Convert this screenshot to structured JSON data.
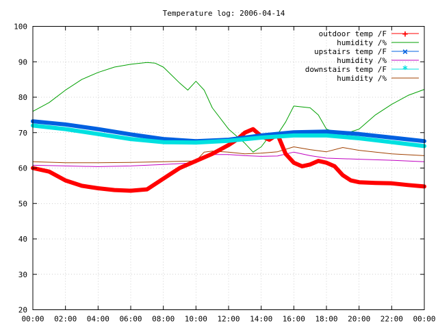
{
  "chart_data": {
    "type": "line",
    "title": "Temperature log: 2006-04-14",
    "xlabel": "",
    "ylabel": "",
    "xlim": [
      0,
      24
    ],
    "ylim": [
      20,
      100
    ],
    "grid": true,
    "legend_position": "top-right",
    "x_ticks": [
      "00:00",
      "02:00",
      "04:00",
      "06:00",
      "08:00",
      "10:00",
      "12:00",
      "14:00",
      "16:00",
      "18:00",
      "20:00",
      "22:00",
      "00:00"
    ],
    "y_ticks": [
      20,
      30,
      40,
      50,
      60,
      70,
      80,
      90,
      100
    ],
    "series": [
      {
        "name": "outdoor temp /F",
        "color": "#ff0000",
        "marker": "+",
        "width": 6,
        "x": [
          0,
          1,
          2,
          3,
          4,
          5,
          6,
          7,
          8,
          9,
          10,
          11,
          12,
          12.5,
          13,
          13.5,
          14,
          14.5,
          15,
          15.5,
          16,
          16.5,
          17,
          17.5,
          18,
          18.5,
          19,
          19.5,
          20,
          21,
          22,
          23,
          24
        ],
        "y": [
          60,
          59,
          56.5,
          55,
          54.3,
          53.8,
          53.6,
          54,
          57,
          60,
          62,
          64,
          66.5,
          68,
          70,
          71,
          69,
          68,
          69.5,
          64,
          61.5,
          60.5,
          61,
          62,
          61.5,
          60.5,
          58,
          56.5,
          56,
          55.8,
          55.7,
          55.2,
          54.8
        ]
      },
      {
        "name": "humidity /%",
        "color": "#00a000",
        "marker": "",
        "width": 1,
        "x": [
          0,
          1,
          2,
          3,
          4,
          5,
          6,
          7,
          7.5,
          8,
          9,
          9.5,
          10,
          10.5,
          11,
          12,
          13,
          13.5,
          14,
          14.5,
          15,
          15.5,
          16,
          17,
          17.5,
          18,
          19,
          20,
          21,
          22,
          23,
          24
        ],
        "y": [
          76,
          78.5,
          82,
          85,
          87,
          88.5,
          89.3,
          89.8,
          89.6,
          88.5,
          84,
          82,
          84.5,
          82,
          77,
          71,
          67,
          64.5,
          66,
          69,
          69.5,
          73,
          77.5,
          77,
          75,
          71,
          69.5,
          71,
          75,
          78,
          80.5,
          82.2
        ]
      },
      {
        "name": "upstairs temp /F",
        "color": "#0060e0",
        "marker": "×",
        "width": 6,
        "x": [
          0,
          2,
          4,
          6,
          8,
          10,
          12,
          14,
          16,
          18,
          20,
          22,
          24
        ],
        "y": [
          73.2,
          72.3,
          71,
          69.5,
          68.2,
          67.6,
          68,
          69.2,
          70.1,
          70.3,
          69.6,
          68.6,
          67.6
        ]
      },
      {
        "name": "humidity /%",
        "color": "#c000c0",
        "marker": "",
        "width": 1,
        "x": [
          0,
          2,
          4,
          6,
          8,
          10,
          10.5,
          11,
          12,
          13,
          14,
          15,
          16,
          17,
          18,
          20,
          22,
          24
        ],
        "y": [
          60.8,
          60.6,
          60.4,
          60.6,
          61,
          61.5,
          63,
          63.8,
          63.8,
          63.5,
          63.3,
          63.4,
          64.5,
          63.5,
          62.8,
          62.5,
          62.2,
          61.8
        ]
      },
      {
        "name": "downstairs temp /F",
        "color": "#00e0e0",
        "marker": "*",
        "width": 6,
        "x": [
          0,
          2,
          4,
          6,
          8,
          10,
          12,
          14,
          16,
          18,
          20,
          22,
          24
        ],
        "y": [
          72,
          71,
          69.6,
          68.2,
          67.3,
          67.2,
          67.7,
          68.6,
          69.2,
          69.2,
          68.4,
          67.3,
          66.2
        ]
      },
      {
        "name": "humidity /%",
        "color": "#a04000",
        "marker": "",
        "width": 1,
        "x": [
          0,
          2,
          4,
          6,
          8,
          10,
          10.5,
          11,
          12,
          13,
          14,
          15,
          16,
          17,
          18,
          19,
          20,
          22,
          24
        ],
        "y": [
          61.8,
          61.5,
          61.5,
          61.6,
          61.8,
          62,
          64.5,
          64.8,
          64.5,
          64,
          64.2,
          64.6,
          66,
          65.2,
          64.6,
          65.8,
          65,
          64,
          63.5
        ]
      }
    ]
  }
}
